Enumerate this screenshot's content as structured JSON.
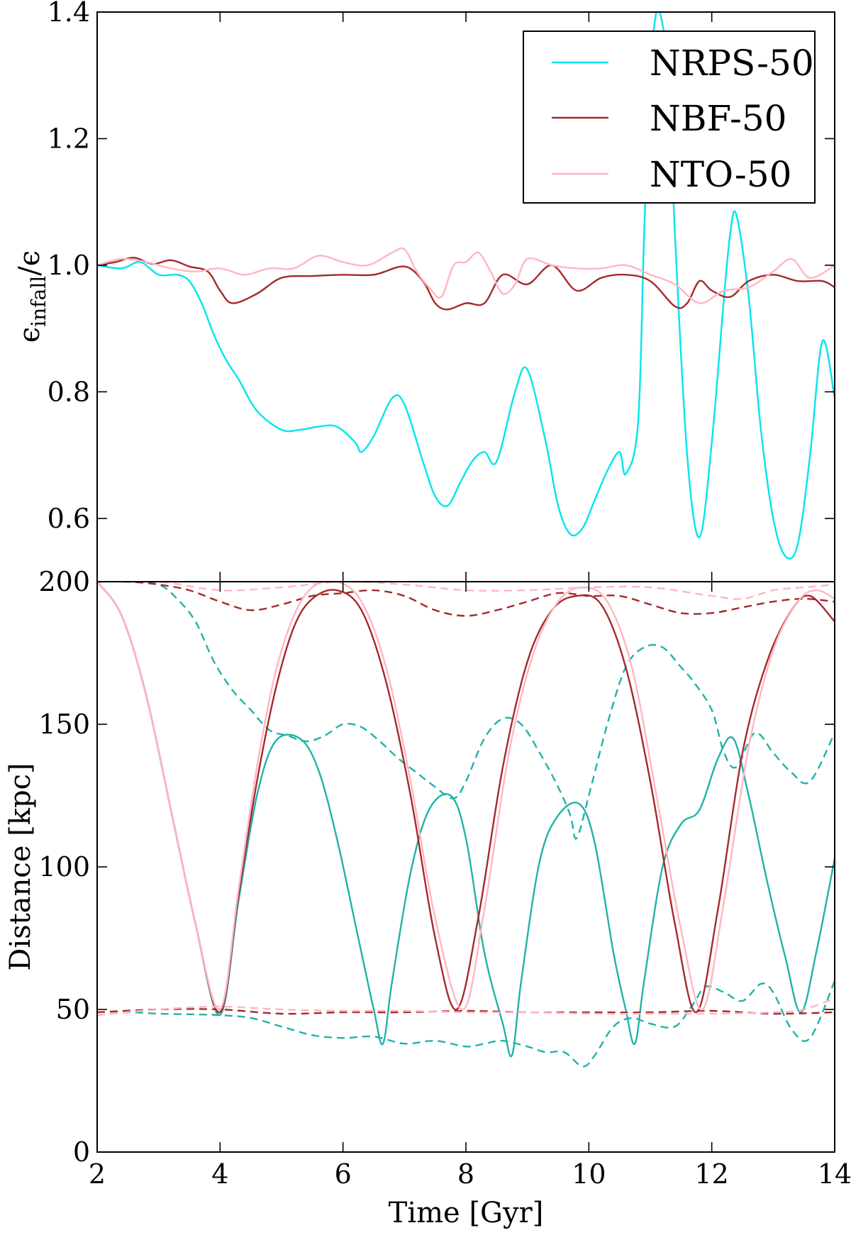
{
  "colors": {
    "NRPS-50": "#00e5ee",
    "NBF-50": "#a52a2a",
    "NTO-50": "#ffb6c1",
    "NRPS-50-distance": "#20b2aa"
  },
  "chart_data": [
    {
      "type": "line",
      "ylabel_main": "ϵ",
      "ylabel_sub": "infall",
      "ylabel_tail": "/ϵ",
      "xlim": [
        2,
        14
      ],
      "ylim": [
        0.5,
        1.4
      ],
      "yticks": [
        "0.6",
        "0.8",
        "1.0",
        "1.2",
        "1.4"
      ],
      "grid": false,
      "legend_position": "top-right",
      "legend": [
        "NRPS-50",
        "NBF-50",
        "NTO-50"
      ],
      "series": [
        {
          "name": "NRPS-50",
          "x": [
            2.0,
            2.4,
            2.7,
            3.0,
            3.3,
            3.5,
            3.7,
            3.9,
            4.1,
            4.3,
            4.6,
            5.0,
            5.3,
            5.6,
            5.9,
            6.2,
            6.3,
            6.5,
            6.8,
            7.0,
            7.3,
            7.5,
            7.7,
            7.9,
            8.1,
            8.3,
            8.5,
            8.8,
            9.0,
            9.3,
            9.5,
            9.7,
            9.9,
            10.1,
            10.3,
            10.5,
            10.6,
            10.8,
            10.9,
            11.0,
            11.1,
            11.2,
            11.3,
            11.4,
            11.6,
            11.8,
            12.0,
            12.2,
            12.3,
            12.4,
            12.6,
            12.8,
            13.0,
            13.2,
            13.4,
            13.6,
            13.8,
            14.0
          ],
          "y": [
            1.0,
            0.995,
            1.005,
            0.985,
            0.985,
            0.975,
            0.94,
            0.89,
            0.85,
            0.82,
            0.77,
            0.74,
            0.74,
            0.745,
            0.745,
            0.72,
            0.705,
            0.73,
            0.79,
            0.78,
            0.69,
            0.635,
            0.62,
            0.655,
            0.69,
            0.705,
            0.69,
            0.8,
            0.835,
            0.72,
            0.62,
            0.575,
            0.585,
            0.63,
            0.675,
            0.705,
            0.67,
            0.75,
            1.05,
            1.3,
            1.4,
            1.38,
            1.3,
            1.05,
            0.7,
            0.57,
            0.72,
            0.95,
            1.05,
            1.08,
            0.95,
            0.74,
            0.6,
            0.54,
            0.56,
            0.7,
            0.88,
            0.79
          ]
        },
        {
          "name": "NBF-50",
          "x": [
            2.0,
            2.3,
            2.6,
            2.9,
            3.2,
            3.5,
            3.8,
            4.0,
            4.2,
            4.6,
            5.0,
            5.5,
            6.0,
            6.5,
            7.0,
            7.3,
            7.5,
            7.7,
            8.0,
            8.3,
            8.6,
            9.0,
            9.4,
            9.8,
            10.2,
            10.6,
            11.0,
            11.4,
            11.6,
            11.8,
            12.0,
            12.3,
            12.6,
            13.0,
            13.4,
            13.8,
            14.0
          ],
          "y": [
            1.0,
            1.005,
            1.012,
            1.002,
            1.008,
            0.998,
            0.99,
            0.96,
            0.94,
            0.955,
            0.98,
            0.983,
            0.985,
            0.985,
            0.998,
            0.975,
            0.94,
            0.93,
            0.94,
            0.94,
            0.985,
            0.97,
            1.0,
            0.96,
            0.98,
            0.985,
            0.975,
            0.935,
            0.94,
            0.975,
            0.96,
            0.95,
            0.975,
            0.985,
            0.975,
            0.975,
            0.965
          ]
        },
        {
          "name": "NTO-50",
          "x": [
            2.0,
            2.4,
            2.8,
            3.2,
            3.6,
            4.0,
            4.4,
            4.8,
            5.2,
            5.6,
            6.0,
            6.4,
            6.8,
            7.0,
            7.2,
            7.4,
            7.6,
            7.8,
            8.0,
            8.2,
            8.4,
            8.6,
            8.8,
            9.0,
            9.4,
            9.8,
            10.2,
            10.6,
            11.0,
            11.4,
            11.8,
            12.2,
            12.6,
            13.0,
            13.3,
            13.6,
            14.0
          ],
          "y": [
            1.0,
            1.01,
            1.005,
            0.995,
            0.99,
            0.995,
            0.985,
            0.995,
            0.995,
            1.015,
            1.005,
            1.0,
            1.02,
            1.025,
            0.99,
            0.965,
            0.95,
            1.0,
            1.005,
            1.02,
            0.99,
            0.955,
            0.97,
            1.01,
            1.0,
            0.995,
            0.995,
            1.0,
            0.985,
            0.97,
            0.94,
            0.96,
            0.965,
            0.99,
            1.01,
            0.98,
            1.0
          ]
        }
      ]
    },
    {
      "type": "line",
      "xlabel": "Time [Gyr]",
      "ylabel": "Distance [kpc]",
      "xlim": [
        2,
        14
      ],
      "ylim": [
        0,
        200
      ],
      "xticks": [
        "2",
        "4",
        "6",
        "8",
        "10",
        "12",
        "14"
      ],
      "yticks": [
        "0",
        "50",
        "100",
        "150",
        "200"
      ],
      "grid": false,
      "series": [
        {
          "name": "NRPS-50",
          "style": "solid",
          "x": [
            2.0,
            2.4,
            2.8,
            3.2,
            3.6,
            4.0,
            4.3,
            4.6,
            4.9,
            5.3,
            5.6,
            5.9,
            6.2,
            6.5,
            6.65,
            6.8,
            7.1,
            7.4,
            7.75,
            8.0,
            8.3,
            8.6,
            8.75,
            8.9,
            9.2,
            9.5,
            9.85,
            10.1,
            10.4,
            10.6,
            10.75,
            10.9,
            11.2,
            11.5,
            11.8,
            12.1,
            12.35,
            12.6,
            12.9,
            13.2,
            13.45,
            13.7,
            14.0
          ],
          "y": [
            200,
            188,
            160,
            120,
            80,
            48,
            88,
            125,
            144,
            145,
            134,
            110,
            80,
            50,
            38,
            60,
            98,
            120,
            125,
            110,
            70,
            45,
            34,
            60,
            102,
            118,
            122,
            108,
            70,
            50,
            38,
            60,
            100,
            115,
            120,
            138,
            145,
            125,
            95,
            68,
            49,
            70,
            103
          ]
        },
        {
          "name": "NRPS-50",
          "style": "dashed",
          "branch": "apocentre",
          "x": [
            2.0,
            2.5,
            3.0,
            3.3,
            3.6,
            3.9,
            4.2,
            4.5,
            4.8,
            5.1,
            5.4,
            5.7,
            6.0,
            6.3,
            6.6,
            6.9,
            7.2,
            7.5,
            7.8,
            8.0,
            8.3,
            8.6,
            8.9,
            9.2,
            9.5,
            9.7,
            9.8,
            10.0,
            10.3,
            10.6,
            10.9,
            11.2,
            11.5,
            11.7,
            12.0,
            12.2,
            12.4,
            12.7,
            13.0,
            13.3,
            13.6,
            14.0
          ],
          "y": [
            200,
            200,
            199,
            194,
            186,
            172,
            162,
            155,
            148,
            146,
            144,
            146,
            150,
            149,
            144,
            138,
            133,
            128,
            124,
            130,
            145,
            152,
            150,
            140,
            128,
            118,
            110,
            125,
            150,
            170,
            177,
            177,
            170,
            165,
            155,
            140,
            135,
            147,
            140,
            133,
            130,
            147
          ]
        },
        {
          "name": "NRPS-50",
          "style": "dashed",
          "branch": "pericentre",
          "x": [
            2.0,
            2.5,
            3.0,
            3.5,
            4.0,
            4.5,
            5.0,
            5.5,
            6.0,
            6.5,
            7.0,
            7.5,
            8.0,
            8.3,
            8.6,
            9.0,
            9.3,
            9.6,
            9.9,
            10.1,
            10.4,
            10.7,
            11.0,
            11.4,
            11.7,
            11.9,
            12.2,
            12.5,
            12.8,
            13.0,
            13.3,
            13.6,
            14.0
          ],
          "y": [
            48,
            49,
            48.5,
            48.3,
            48,
            47,
            44,
            41,
            40,
            40.5,
            38,
            39,
            37,
            38,
            39,
            37,
            35,
            35,
            30,
            34,
            44,
            47,
            45,
            44,
            52,
            58,
            56,
            53,
            59,
            56,
            43,
            40,
            60
          ]
        },
        {
          "name": "NBF-50",
          "style": "solid",
          "x": [
            2.0,
            2.4,
            2.8,
            3.2,
            3.6,
            4.0,
            4.3,
            4.6,
            4.9,
            5.2,
            5.5,
            5.9,
            6.3,
            6.7,
            7.1,
            7.5,
            7.85,
            8.2,
            8.6,
            9.0,
            9.4,
            9.8,
            10.2,
            10.6,
            11.0,
            11.4,
            11.75,
            12.1,
            12.5,
            12.9,
            13.3,
            13.6,
            14.0
          ],
          "y": [
            200,
            188,
            160,
            120,
            80,
            49,
            90,
            130,
            162,
            184,
            194,
            197,
            190,
            165,
            125,
            75,
            50,
            82,
            135,
            172,
            190,
            195,
            192,
            170,
            130,
            80,
            49,
            85,
            140,
            172,
            190,
            195,
            186
          ]
        },
        {
          "name": "NBF-50",
          "style": "dashed",
          "branch": "apocentre",
          "x": [
            2.0,
            2.5,
            3.0,
            3.5,
            4.0,
            4.5,
            5.0,
            5.5,
            6.0,
            6.5,
            7.0,
            7.5,
            8.0,
            8.5,
            9.0,
            9.5,
            10.0,
            10.5,
            11.0,
            11.5,
            12.0,
            12.5,
            13.0,
            13.5,
            14.0
          ],
          "y": [
            200,
            200,
            199,
            197,
            193,
            190,
            192,
            195,
            196,
            197,
            195,
            190,
            188,
            190,
            193,
            196,
            195,
            195,
            192,
            189,
            189,
            191,
            193,
            194,
            193
          ]
        },
        {
          "name": "NBF-50",
          "style": "dashed",
          "branch": "pericentre",
          "x": [
            2.0,
            3.0,
            4.0,
            5.0,
            6.0,
            7.0,
            8.0,
            9.0,
            10.0,
            11.0,
            12.0,
            13.0,
            14.0
          ],
          "y": [
            49,
            50,
            50,
            48.5,
            49,
            49,
            49.5,
            49,
            49,
            49,
            49.5,
            48.5,
            49
          ]
        },
        {
          "name": "NTO-50",
          "style": "solid",
          "x": [
            2.0,
            2.4,
            2.8,
            3.2,
            3.6,
            4.0,
            4.3,
            4.6,
            4.9,
            5.2,
            5.5,
            5.9,
            6.3,
            6.7,
            7.1,
            7.5,
            7.95,
            8.3,
            8.7,
            9.1,
            9.5,
            9.9,
            10.3,
            10.7,
            11.1,
            11.5,
            11.85,
            12.2,
            12.6,
            13.0,
            13.4,
            13.7,
            14.0
          ],
          "y": [
            200,
            188,
            160,
            120,
            80,
            50,
            92,
            135,
            168,
            188,
            198,
            200,
            193,
            170,
            130,
            82,
            50,
            85,
            140,
            175,
            193,
            198,
            193,
            170,
            125,
            78,
            50,
            88,
            142,
            176,
            193,
            197,
            194
          ]
        },
        {
          "name": "NTO-50",
          "style": "dashed",
          "branch": "apocentre",
          "x": [
            2.0,
            3.0,
            4.0,
            5.0,
            6.0,
            7.0,
            8.0,
            9.0,
            10.0,
            11.0,
            12.0,
            12.5,
            13.0,
            13.5,
            14.0
          ],
          "y": [
            200,
            200,
            197,
            198,
            200,
            199,
            197,
            197,
            198,
            198,
            195,
            194,
            197,
            198,
            199
          ]
        },
        {
          "name": "NTO-50",
          "style": "dashed",
          "branch": "pericentre",
          "x": [
            2.0,
            3.0,
            4.0,
            5.0,
            6.0,
            7.0,
            8.0,
            9.0,
            10.0,
            11.0,
            12.0,
            13.0,
            13.5,
            14.0
          ],
          "y": [
            48,
            50,
            51,
            50,
            49.5,
            49.5,
            49,
            49,
            48.5,
            48.5,
            48.5,
            49,
            50,
            54
          ]
        }
      ]
    }
  ]
}
